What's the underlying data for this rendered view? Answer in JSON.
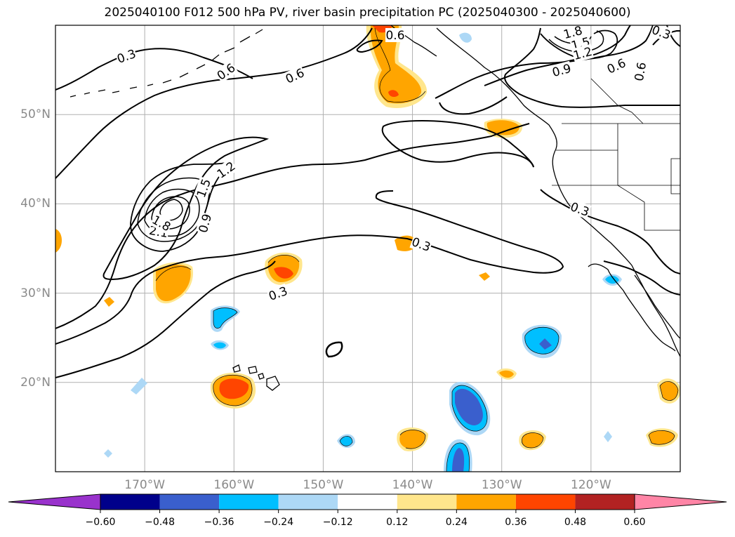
{
  "title": "2025040100 F012 500 hPa PV, river basin precipitation PC (2025040300 - 2025040600)",
  "lon_labels": [
    "170°W",
    "160°W",
    "150°W",
    "140°W",
    "130°W",
    "120°W"
  ],
  "lat_labels": [
    "50°N",
    "40°N",
    "30°N",
    "20°N"
  ],
  "contour_labels": [
    "0.3",
    "0.6",
    "0.9",
    "1.2",
    "1.5",
    "1.8",
    "2.1"
  ],
  "colorbar": {
    "ticks": [
      "−0.60",
      "−0.48",
      "−0.36",
      "−0.24",
      "−0.12",
      "0.12",
      "0.24",
      "0.36",
      "0.48",
      "0.60"
    ],
    "colors": [
      "#9932cc",
      "#00008b",
      "#3a5fcd",
      "#00bfff",
      "#add8f6",
      "#ffffff",
      "#ffe68c",
      "#ffa500",
      "#ff4500",
      "#b22222",
      "#ff85a6"
    ]
  },
  "map": {
    "extent_lon": [
      -180,
      -110
    ],
    "extent_lat": [
      10,
      60
    ],
    "grid_lons": [
      -170,
      -160,
      -150,
      -140,
      -130,
      -120
    ],
    "grid_lats": [
      20,
      30,
      40,
      50
    ]
  }
}
